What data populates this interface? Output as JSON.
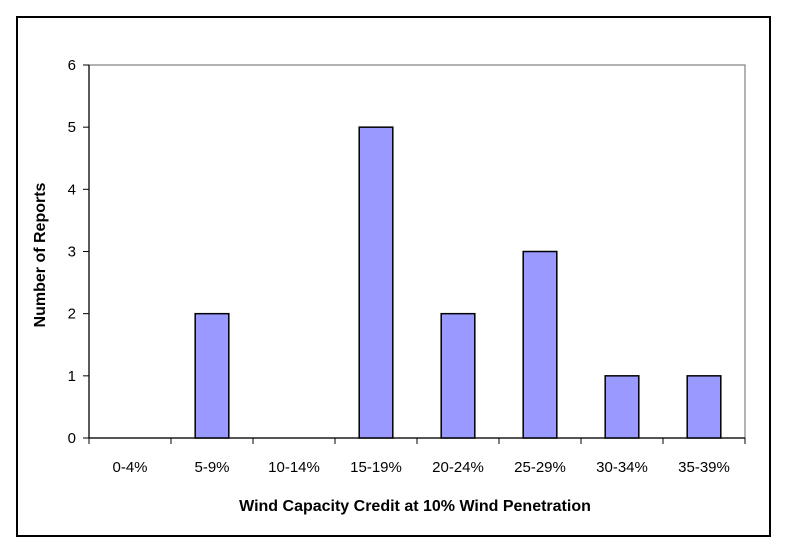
{
  "chart_data": {
    "type": "bar",
    "title": "",
    "xlabel": "Wind Capacity Credit at 10% Wind Penetration",
    "ylabel": "Number of Reports",
    "categories": [
      "0-4%",
      "5-9%",
      "10-14%",
      "15-19%",
      "20-24%",
      "25-29%",
      "30-34%",
      "35-39%"
    ],
    "values": [
      0,
      2,
      0,
      5,
      2,
      3,
      1,
      1
    ],
    "ylim": [
      0,
      6
    ],
    "yticks": [
      0,
      1,
      2,
      3,
      4,
      5,
      6
    ],
    "grid": false,
    "legend": "none",
    "bar_color": "#9999ff",
    "bar_edge_color": "#000000"
  }
}
